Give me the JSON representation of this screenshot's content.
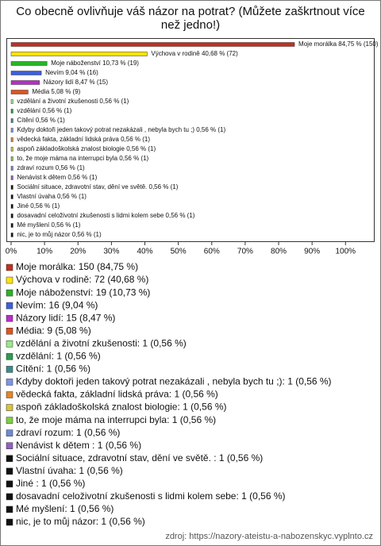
{
  "chart_data": {
    "type": "hbar",
    "title": "Co obecně ovlivňuje váš názor na potrat? (Můžete zaškrtnout více než jedno!)",
    "values": [
      84.75,
      40.68,
      10.73,
      9.04,
      8.47,
      5.08,
      0.56,
      0.56,
      0.56,
      0.56,
      0.56,
      0.56,
      0.56,
      0.56,
      0.56,
      0.56,
      0.56,
      0.56,
      0.56,
      0.56,
      0.56
    ],
    "value_labels": [
      "Moje morálka 84,75 % (150)",
      "Výchova v rodině 40,68 % (72)",
      "Moje náboženství 10,73 % (19)",
      "Nevím 9,04 % (16)",
      "Názory lidí 8,47 % (15)",
      "Média 5,08 % (9)",
      "vzdělání a životní zkušenosti 0,56 % (1)",
      "vzdělání 0,56 % (1)",
      "Cítění 0,56 % (1)",
      "Kdyby doktoři jeden takový potrat nezakázali , nebyla bych tu ;) 0,56 % (1)",
      "vědecká fakta, základní lidská práva 0,56 % (1)",
      "aspoň základoškolská znalost biologie 0,56 % (1)",
      "to, že moje máma na interrupci byla 0,56 % (1)",
      "zdraví rozum 0,56 % (1)",
      "Nenávist k dětem  0,56 % (1)",
      "Sociální situace, zdravotní stav, dění ve světě.  0,56 % (1)",
      "Vlastní úvaha 0,56 % (1)",
      "Jiné  0,56 % (1)",
      "dosavadní celoživotní zkušenosti s lidmi kolem sebe 0,56 % (1)",
      "Mé myšlení 0,56 % (1)",
      "nic, je to můj názor 0,56 % (1)"
    ],
    "legend_labels": [
      "Moje morálka: 150 (84,75 %)",
      "Výchova v rodině: 72 (40,68 %)",
      "Moje náboženství: 19 (10,73 %)",
      "Nevím: 16 (9,04 %)",
      "Názory lidí: 15 (8,47 %)",
      "Média: 9 (5,08 %)",
      "vzdělání a životní zkušenosti: 1 (0,56 %)",
      "vzdělání: 1 (0,56 %)",
      "Cítění: 1 (0,56 %)",
      "Kdyby doktoři jeden takový potrat nezakázali , nebyla bych tu ;): 1 (0,56 %)",
      "vědecká fakta, základní lidská práva: 1 (0,56 %)",
      "aspoň základoškolská znalost biologie: 1 (0,56 %)",
      "to, že moje máma na interrupci byla: 1 (0,56 %)",
      "zdraví rozum: 1 (0,56 %)",
      "Nenávist k dětem : 1 (0,56 %)",
      "Sociální situace, zdravotní stav, dění ve světě. : 1 (0,56 %)",
      "Vlastní úvaha: 1 (0,56 %)",
      "Jiné : 1 (0,56 %)",
      "dosavadní celoživotní zkušenosti s lidmi kolem sebe: 1 (0,56 %)",
      "Mé myšlení: 1 (0,56 %)",
      "nic, je to můj názor: 1 (0,56 %)"
    ],
    "colors": [
      "#c0311f",
      "#ffe400",
      "#26b526",
      "#3c5fdc",
      "#b52ec8",
      "#e2521c",
      "#9ae88a",
      "#2e9a4c",
      "#3a8c8c",
      "#7f93e3",
      "#e3852a",
      "#d9c33e",
      "#7ccf3f",
      "#6d8bd3",
      "#9160c4",
      "#111111",
      "#111111",
      "#111111",
      "#111111",
      "#111111",
      "#111111"
    ],
    "xlim": [
      0,
      108
    ],
    "xticks": [
      {
        "value": 0,
        "label": "0%"
      },
      {
        "value": 10,
        "label": "10%"
      },
      {
        "value": 20,
        "label": "20%"
      },
      {
        "value": 30,
        "label": "30%"
      },
      {
        "value": 40,
        "label": "40%"
      },
      {
        "value": 50,
        "label": "50%"
      },
      {
        "value": 60,
        "label": "60%"
      },
      {
        "value": 70,
        "label": "70%"
      },
      {
        "value": 80,
        "label": "80%"
      },
      {
        "value": 90,
        "label": "90%"
      },
      {
        "value": 100,
        "label": "100%"
      }
    ],
    "source": "zdroj: https://nazory-ateistu-a-nabozenskyc.vyplnto.cz"
  }
}
